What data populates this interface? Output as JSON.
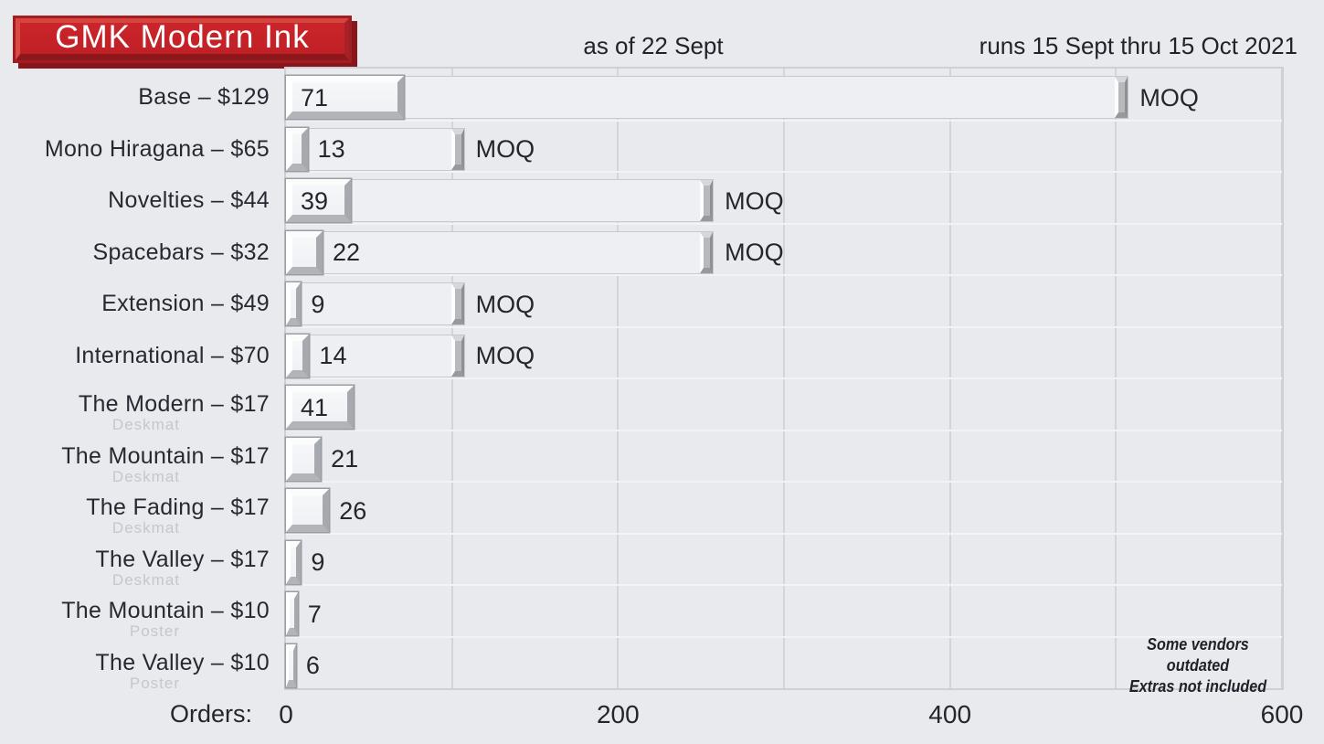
{
  "title": "GMK Modern Ink",
  "header": {
    "as_of": "as of 22 Sept",
    "runs": "runs 15 Sept thru 15 Oct 2021"
  },
  "axis": {
    "label": "Orders:"
  },
  "moq_label": "MOQ",
  "note_lines": [
    "Some vendors outdated",
    "Extras not included"
  ],
  "colors": {
    "bg": "#e9eaee",
    "text": "#22252d",
    "sublabel": "#c4c7cb",
    "banner_outer": "#a11d22",
    "banner_face": "#c5222a",
    "banner_shadow": "#88151a",
    "keycap_face": "#f3f5f7",
    "track_fill": "#edeff2",
    "gridline": "#d3d5d9"
  },
  "chart_data": {
    "type": "bar",
    "orientation": "horizontal",
    "title": "GMK Modern Ink",
    "subtitle_left": "as of 22 Sept",
    "subtitle_right": "runs 15 Sept thru 15 Oct 2021",
    "xlabel": "Orders:",
    "xlim": [
      0,
      600
    ],
    "xticks": [
      0,
      200,
      400,
      600
    ],
    "gridlines_every": 100,
    "moq_marker_label": "MOQ",
    "rows": [
      {
        "label": "Base – $129",
        "sublabel": null,
        "orders": 71,
        "moq": 500
      },
      {
        "label": "Mono Hiragana – $65",
        "sublabel": null,
        "orders": 13,
        "moq": 100
      },
      {
        "label": "Novelties – $44",
        "sublabel": null,
        "orders": 39,
        "moq": 250
      },
      {
        "label": "Spacebars – $32",
        "sublabel": null,
        "orders": 22,
        "moq": 250
      },
      {
        "label": "Extension – $49",
        "sublabel": null,
        "orders": 9,
        "moq": 100
      },
      {
        "label": "International – $70",
        "sublabel": null,
        "orders": 14,
        "moq": 100
      },
      {
        "label": "The Modern – $17",
        "sublabel": "Deskmat",
        "orders": 41,
        "moq": null
      },
      {
        "label": "The Mountain – $17",
        "sublabel": "Deskmat",
        "orders": 21,
        "moq": null
      },
      {
        "label": "The Fading – $17",
        "sublabel": "Deskmat",
        "orders": 26,
        "moq": null
      },
      {
        "label": "The Valley – $17",
        "sublabel": "Deskmat",
        "orders": 9,
        "moq": null
      },
      {
        "label": "The Mountain – $10",
        "sublabel": "Poster",
        "orders": 7,
        "moq": null
      },
      {
        "label": "The Valley – $10",
        "sublabel": "Poster",
        "orders": 6,
        "moq": null
      }
    ],
    "notes": [
      "Some vendors outdated",
      "Extras not included"
    ]
  }
}
